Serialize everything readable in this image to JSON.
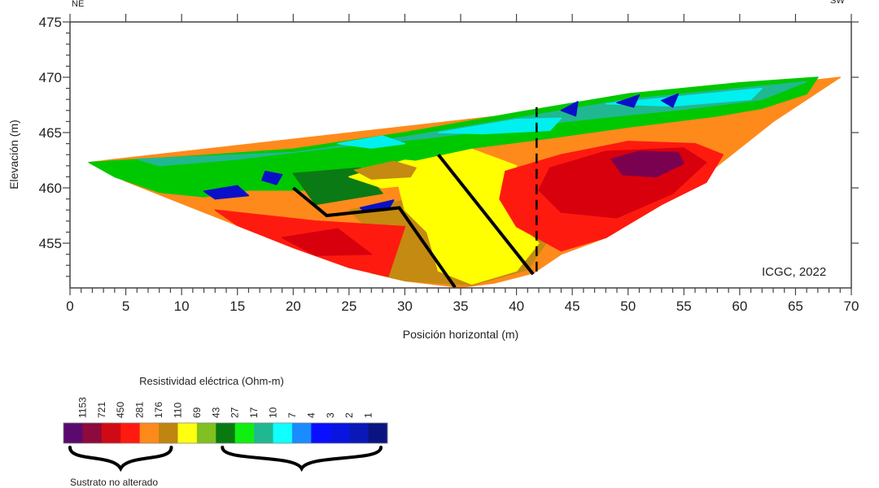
{
  "chart_data": {
    "type": "heatmap",
    "subtype": "electrical resistivity tomography section",
    "xlabel": "Posición horizontal (m)",
    "ylabel": "Elevación (m)",
    "xlim": [
      0,
      70
    ],
    "ylim": [
      451,
      475
    ],
    "x_ticks": [
      0,
      5,
      10,
      15,
      20,
      25,
      30,
      35,
      40,
      45,
      50,
      55,
      60,
      65,
      70
    ],
    "y_ticks": [
      455,
      460,
      465,
      470,
      475
    ],
    "orientation_labels": {
      "left": "NE",
      "right": "SW"
    },
    "annotation": "ICGC, 2022",
    "grid": false,
    "surface_profile": [
      [
        1.7,
        462.3
      ],
      [
        10,
        462.8
      ],
      [
        20,
        463.5
      ],
      [
        30,
        465
      ],
      [
        40,
        466.8
      ],
      [
        50,
        468.5
      ],
      [
        60,
        469.5
      ],
      [
        69,
        470
      ]
    ],
    "section_bottom": [
      [
        69,
        470
      ],
      [
        63,
        466
      ],
      [
        58,
        462
      ],
      [
        53,
        458.5
      ],
      [
        48,
        455.5
      ],
      [
        44,
        454
      ],
      [
        41.5,
        452.3
      ],
      [
        38,
        451.4
      ],
      [
        35,
        451
      ],
      [
        30,
        451.6
      ],
      [
        25,
        452.8
      ],
      [
        20,
        454.6
      ],
      [
        15,
        456.6
      ],
      [
        10,
        458.6
      ],
      [
        5,
        460.6
      ],
      [
        1.7,
        462.3
      ]
    ],
    "interpreted_lines": [
      {
        "style": "solid",
        "points": [
          [
            20,
            460
          ],
          [
            23,
            457.5
          ],
          [
            29.5,
            458.2
          ],
          [
            34.5,
            451
          ]
        ]
      },
      {
        "style": "solid",
        "points": [
          [
            33,
            463
          ],
          [
            41.5,
            452.2
          ]
        ]
      },
      {
        "style": "dashed",
        "points": [
          [
            41.8,
            467.3
          ],
          [
            41.8,
            452.2
          ]
        ]
      }
    ],
    "zones": [
      {
        "resistivity": "176-281",
        "color": "#ff8a1c",
        "points": [
          [
            1.7,
            462.3
          ],
          [
            69,
            470
          ],
          [
            63,
            466
          ],
          [
            58,
            462
          ],
          [
            53,
            458.5
          ],
          [
            48,
            455.5
          ],
          [
            44,
            454
          ],
          [
            41.5,
            452.3
          ],
          [
            38,
            451.4
          ],
          [
            35,
            451
          ],
          [
            30,
            451.6
          ],
          [
            25,
            452.8
          ],
          [
            20,
            454.6
          ],
          [
            15,
            456.6
          ],
          [
            10,
            458.6
          ],
          [
            5,
            460.6
          ]
        ]
      },
      {
        "resistivity": "110-176",
        "color": "#c48a12",
        "points": [
          [
            25,
            458
          ],
          [
            42,
            461
          ],
          [
            44,
            457
          ],
          [
            41,
            452.6
          ],
          [
            36,
            451.2
          ],
          [
            30,
            451.6
          ],
          [
            27,
            452.3
          ],
          [
            27,
            456
          ]
        ]
      },
      {
        "resistivity": "69-110",
        "color": "#ffff00",
        "points": [
          [
            29,
            462
          ],
          [
            36,
            463.5
          ],
          [
            40,
            462
          ],
          [
            39,
            458
          ],
          [
            42,
            455
          ],
          [
            40,
            452.5
          ],
          [
            36,
            451.3
          ],
          [
            33,
            452.5
          ],
          [
            32,
            456
          ],
          [
            30,
            458
          ]
        ]
      },
      {
        "resistivity": "281-450",
        "color": "#ff1a10",
        "points": [
          [
            13,
            458
          ],
          [
            22,
            457
          ],
          [
            30,
            456.5
          ],
          [
            28.5,
            452
          ],
          [
            25,
            452.8
          ],
          [
            20,
            454.6
          ],
          [
            15,
            456.6
          ]
        ]
      },
      {
        "resistivity": "450-721",
        "color": "#d8000c",
        "points": [
          [
            19,
            455.5
          ],
          [
            24,
            456.3
          ],
          [
            27,
            454
          ],
          [
            22,
            453.9
          ]
        ]
      },
      {
        "resistivity": "281-450",
        "color": "#ff1a10",
        "points": [
          [
            39,
            461.5
          ],
          [
            44,
            463
          ],
          [
            50,
            464.2
          ],
          [
            56,
            464
          ],
          [
            58.5,
            463
          ],
          [
            57,
            460.5
          ],
          [
            53,
            458.5
          ],
          [
            48,
            455.5
          ],
          [
            44,
            454.3
          ],
          [
            40,
            456.5
          ],
          [
            38.5,
            459
          ]
        ]
      },
      {
        "resistivity": "450-721",
        "color": "#d8000c",
        "points": [
          [
            43,
            461.8
          ],
          [
            48,
            463.3
          ],
          [
            55,
            463.6
          ],
          [
            57,
            462.3
          ],
          [
            54,
            459.5
          ],
          [
            49,
            457.3
          ],
          [
            44,
            457.8
          ],
          [
            42,
            459.8
          ]
        ]
      },
      {
        "resistivity": "721-1153",
        "color": "#7a0050",
        "points": [
          [
            48.5,
            462.6
          ],
          [
            51,
            463.3
          ],
          [
            54.5,
            463.2
          ],
          [
            55,
            462.2
          ],
          [
            52.5,
            461
          ],
          [
            49.5,
            461.2
          ]
        ]
      },
      {
        "resistivity": "27-43",
        "color": "#00c800",
        "points": [
          [
            1.7,
            462.3
          ],
          [
            10,
            462.8
          ],
          [
            20,
            463.5
          ],
          [
            30,
            465
          ],
          [
            40,
            466.8
          ],
          [
            50,
            468.5
          ],
          [
            60,
            469.5
          ],
          [
            67,
            470
          ],
          [
            66,
            468.5
          ],
          [
            62,
            467.2
          ],
          [
            58,
            466.5
          ],
          [
            50,
            465.5
          ],
          [
            43,
            464.5
          ],
          [
            36,
            463.6
          ],
          [
            30,
            462.3
          ],
          [
            25,
            461.2
          ],
          [
            21,
            459.8
          ],
          [
            16,
            459.8
          ],
          [
            12,
            459.2
          ],
          [
            8,
            459.6
          ],
          [
            4,
            461
          ]
        ]
      },
      {
        "resistivity": "43-69",
        "color": "#0a7a14",
        "points": [
          [
            20,
            461.3
          ],
          [
            26,
            461.8
          ],
          [
            28,
            459.5
          ],
          [
            22,
            458.5
          ]
        ]
      },
      {
        "resistivity": "69-110",
        "color": "#ffff00",
        "points": [
          [
            25,
            461
          ],
          [
            30,
            462.5
          ],
          [
            33,
            462.2
          ],
          [
            32,
            460.5
          ],
          [
            28,
            460
          ]
        ]
      },
      {
        "resistivity": "110-176",
        "color": "#c48a12",
        "points": [
          [
            25.5,
            461.6
          ],
          [
            29,
            462.4
          ],
          [
            31,
            461.8
          ],
          [
            30.5,
            461
          ],
          [
            27,
            460.8
          ]
        ]
      },
      {
        "resistivity": "10-17",
        "color": "#20b890",
        "points": [
          [
            6,
            462.6
          ],
          [
            20,
            463.2
          ],
          [
            30,
            464.6
          ],
          [
            40,
            466.3
          ],
          [
            50,
            468
          ],
          [
            60,
            469
          ],
          [
            66,
            469.6
          ],
          [
            62,
            468
          ],
          [
            55,
            467.1
          ],
          [
            48,
            466.4
          ],
          [
            40,
            465.5
          ],
          [
            32,
            464.5
          ],
          [
            25,
            463.8
          ],
          [
            15,
            462.6
          ],
          [
            8,
            462
          ]
        ]
      },
      {
        "resistivity": "7-10",
        "color": "#00f0f0",
        "points": [
          [
            24,
            464
          ],
          [
            28,
            464.7
          ],
          [
            30,
            464
          ],
          [
            27,
            463.6
          ]
        ]
      },
      {
        "resistivity": "7-10",
        "color": "#00f0f0",
        "points": [
          [
            33,
            465
          ],
          [
            40,
            466.2
          ],
          [
            44,
            466.3
          ],
          [
            43,
            465.2
          ],
          [
            37,
            464.9
          ]
        ]
      },
      {
        "resistivity": "7-10",
        "color": "#00f0f0",
        "points": [
          [
            48,
            467.6
          ],
          [
            56,
            468.4
          ],
          [
            62,
            469
          ],
          [
            61,
            468
          ],
          [
            54,
            467.4
          ]
        ]
      },
      {
        "resistivity": "1-4",
        "color": "#0a10c8",
        "points": [
          [
            12,
            459.7
          ],
          [
            15,
            460.2
          ],
          [
            16,
            459.3
          ],
          [
            13,
            459
          ]
        ]
      },
      {
        "resistivity": "1-4",
        "color": "#0a10c8",
        "points": [
          [
            17.5,
            461.5
          ],
          [
            19,
            461.2
          ],
          [
            18.5,
            460.3
          ],
          [
            17.2,
            460.7
          ]
        ]
      },
      {
        "resistivity": "1-4",
        "color": "#0a10c8",
        "points": [
          [
            26,
            458.2
          ],
          [
            29,
            458.9
          ],
          [
            28.5,
            458
          ],
          [
            26.5,
            457.8
          ]
        ]
      },
      {
        "resistivity": "1-4",
        "color": "#0a10c8",
        "points": [
          [
            44,
            467
          ],
          [
            45.5,
            467.8
          ],
          [
            45.3,
            466.5
          ]
        ]
      },
      {
        "resistivity": "1-4",
        "color": "#0a10c8",
        "points": [
          [
            49,
            467.7
          ],
          [
            51,
            468.4
          ],
          [
            50.5,
            467.3
          ]
        ]
      },
      {
        "resistivity": "1-4",
        "color": "#0a10c8",
        "points": [
          [
            53,
            467.9
          ],
          [
            54.5,
            468.5
          ],
          [
            54,
            467.3
          ]
        ]
      }
    ],
    "legend": {
      "title": "Resistividad eléctrica (Ohm-m)",
      "labels": [
        "1153",
        "721",
        "450",
        "281",
        "176",
        "110",
        "69",
        "43",
        "27",
        "17",
        "10",
        "7",
        "4",
        "3",
        "2",
        "1"
      ],
      "colors": [
        "#5a0a6e",
        "#8c0a3c",
        "#d00a14",
        "#ff1a10",
        "#ff8a1c",
        "#c08410",
        "#ffff10",
        "#80c020",
        "#087a10",
        "#10f010",
        "#20b890",
        "#10ffff",
        "#1a8cff",
        "#0a10ff",
        "#0a14e0",
        "#0a18b8",
        "#0a1480"
      ],
      "groups": [
        {
          "label": "Sustrato no alterado",
          "from": 0,
          "to": 5
        },
        {
          "label": "",
          "from": 8,
          "to": 16
        }
      ]
    }
  }
}
